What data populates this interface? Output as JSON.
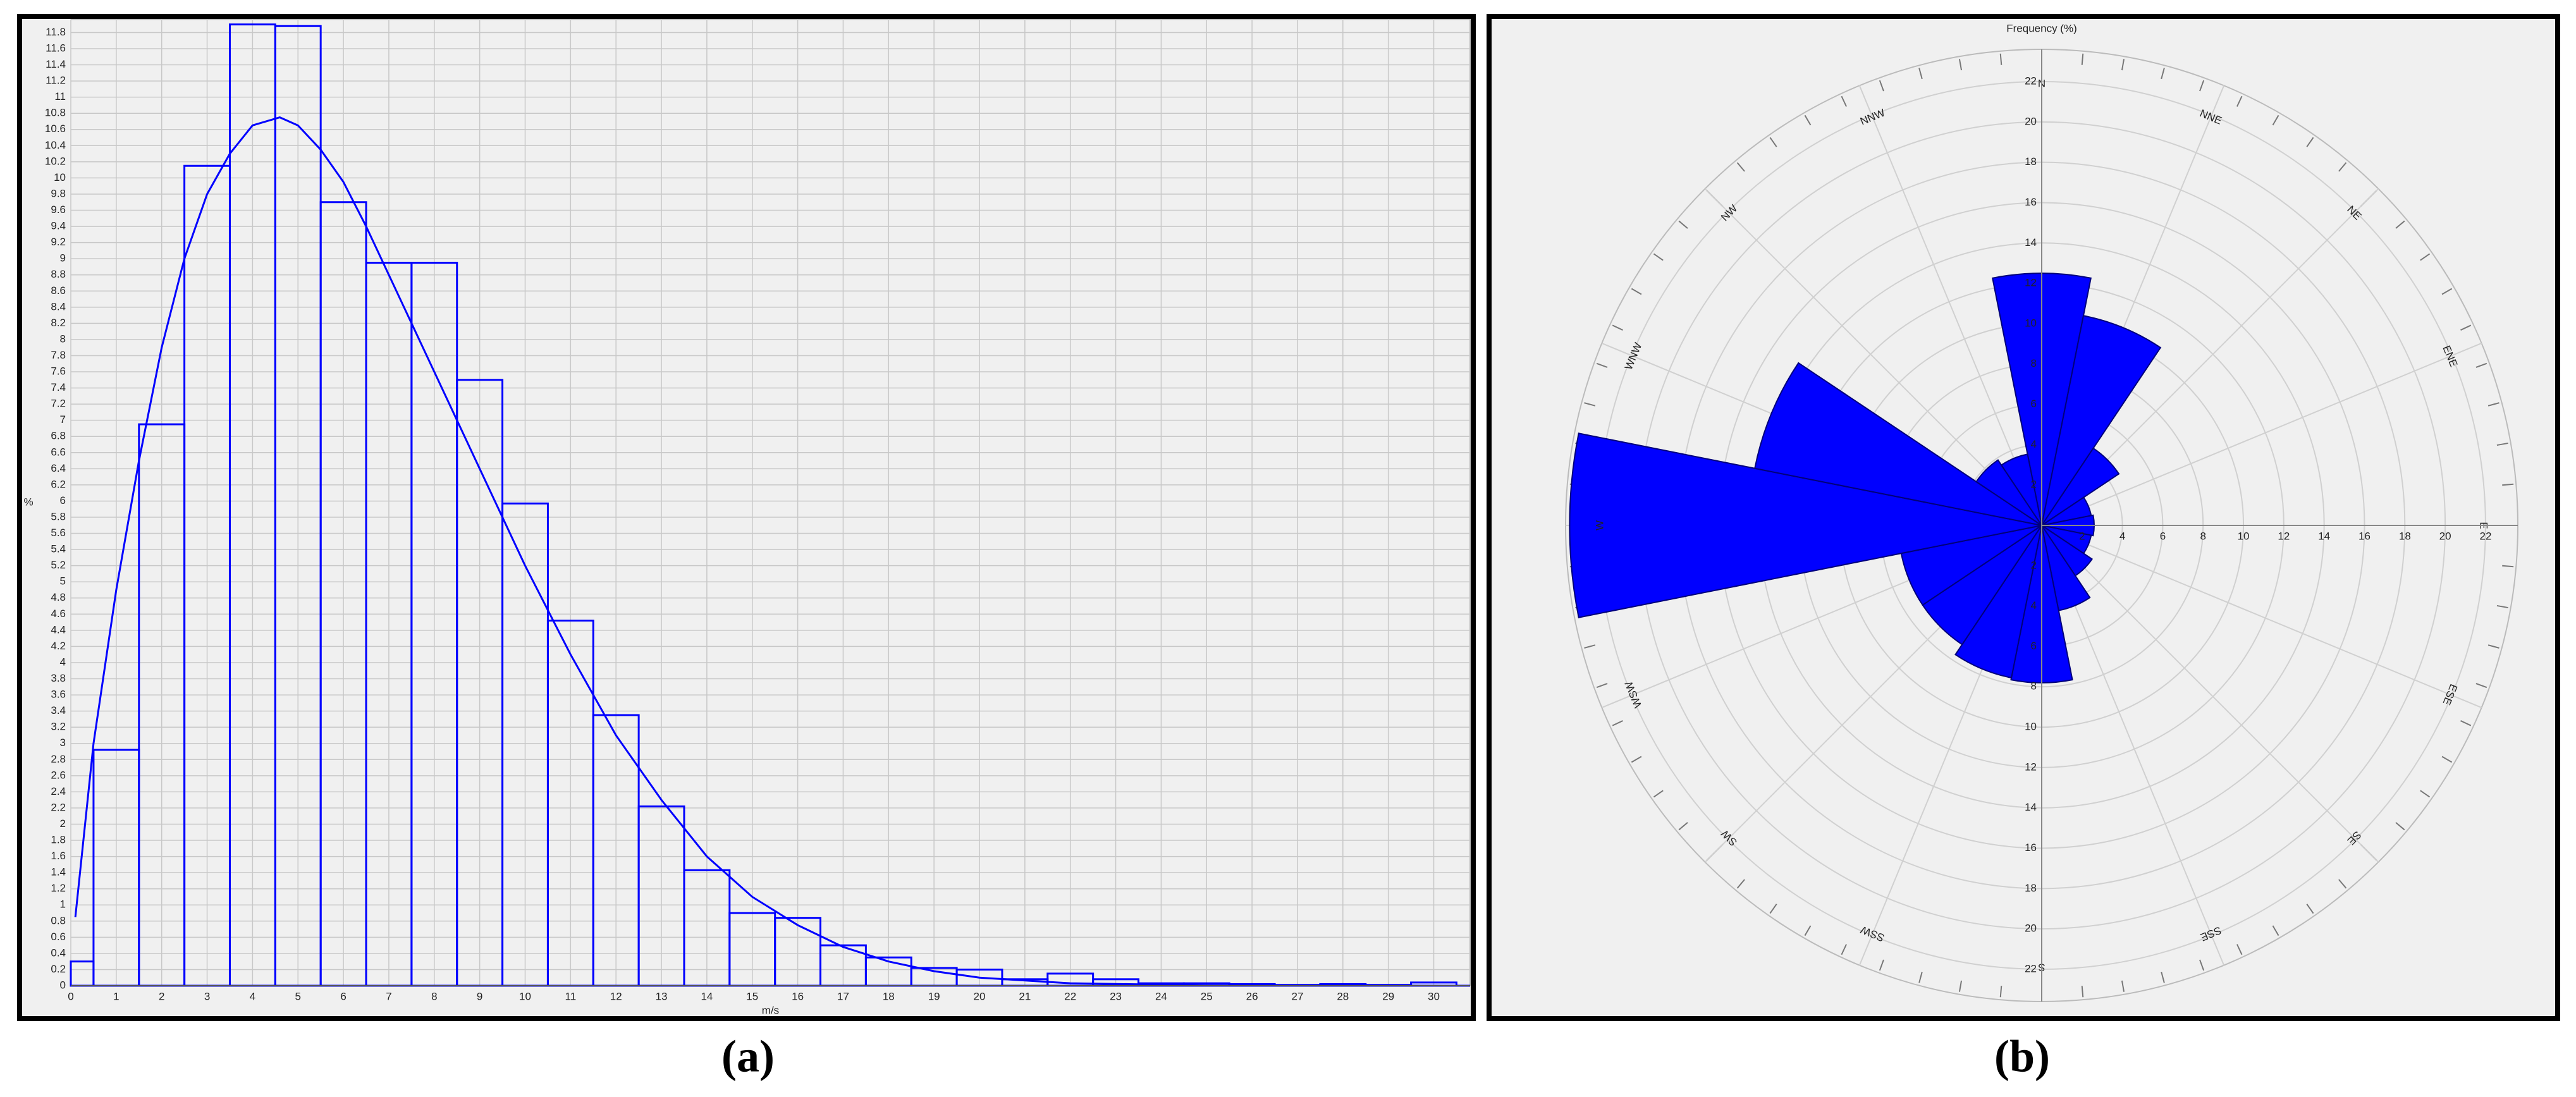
{
  "chart_data": [
    {
      "type": "histogram",
      "caption": "(a)",
      "x_label": "m/s",
      "y_label": "%",
      "color": "#0000ff",
      "grid": true,
      "bins": [
        0,
        0.5,
        1.5,
        2.5,
        3.5,
        4.5,
        5.5,
        6.5,
        7.5,
        8.5,
        9.5,
        10.5,
        11.5,
        12.5,
        13.5,
        14.5,
        15.5,
        16.5,
        17.5,
        18.5,
        19.5,
        20.5,
        21.5,
        22.5,
        23.5,
        24.5,
        25.5,
        26.5,
        27.5,
        28.5,
        29.5,
        30.5
      ],
      "values": [
        0.3,
        2.92,
        6.95,
        10.15,
        11.9,
        11.88,
        9.7,
        8.95,
        8.95,
        7.5,
        5.97,
        4.52,
        3.35,
        2.22,
        1.43,
        0.9,
        0.84,
        0.5,
        0.35,
        0.22,
        0.2,
        0.08,
        0.15,
        0.08,
        0.03,
        0.03,
        0.02,
        0.01,
        0.02,
        0.01,
        0.04
      ],
      "line": {
        "color": "#0000ff",
        "x": [
          0.1,
          0.5,
          1,
          1.5,
          2,
          2.5,
          3,
          3.5,
          4,
          4.6,
          5,
          5.5,
          6,
          6.5,
          7,
          8,
          9,
          10,
          11,
          12,
          13,
          14,
          15,
          16,
          17,
          18,
          19,
          20,
          22,
          25,
          30.8
        ],
        "values": [
          0.85,
          3.0,
          4.9,
          6.5,
          7.9,
          9.0,
          9.8,
          10.3,
          10.65,
          10.75,
          10.65,
          10.35,
          9.95,
          9.4,
          8.8,
          7.6,
          6.4,
          5.2,
          4.1,
          3.1,
          2.3,
          1.6,
          1.1,
          0.75,
          0.48,
          0.3,
          0.18,
          0.1,
          0.03,
          0.005,
          0
        ]
      },
      "xlim": [
        0,
        30.8
      ],
      "ylim": [
        0,
        11.96
      ],
      "xticks": [
        0,
        1,
        2,
        3,
        4,
        5,
        6,
        7,
        8,
        9,
        10,
        11,
        12,
        13,
        14,
        15,
        16,
        17,
        18,
        19,
        20,
        21,
        22,
        23,
        24,
        25,
        26,
        27,
        28,
        29,
        30
      ],
      "yticks": [
        0,
        0.2,
        0.4,
        0.6,
        0.8,
        1,
        1.2,
        1.4,
        1.6,
        1.8,
        2,
        2.2,
        2.4,
        2.6,
        2.8,
        3,
        3.2,
        3.4,
        3.6,
        3.8,
        4,
        4.2,
        4.4,
        4.6,
        4.8,
        5,
        5.2,
        5.4,
        5.6,
        5.8,
        6,
        6.2,
        6.4,
        6.6,
        6.8,
        7,
        7.2,
        7.4,
        7.6,
        7.8,
        8,
        8.2,
        8.4,
        8.6,
        8.8,
        9,
        9.2,
        9.4,
        9.6,
        9.8,
        10,
        10.2,
        10.4,
        10.6,
        10.8,
        11,
        11.2,
        11.4,
        11.6,
        11.8
      ]
    },
    {
      "type": "windrose",
      "caption": "(b)",
      "title": "Frequency (%)",
      "color": "#0000ff",
      "categories": [
        "N",
        "NNE",
        "NE",
        "ENE",
        "E",
        "ESE",
        "SE",
        "SSE",
        "S",
        "SSW",
        "SW",
        "WSW",
        "W",
        "WNW",
        "NW",
        "NNW"
      ],
      "values": [
        12.5,
        10.6,
        4.6,
        2.5,
        2.6,
        2.5,
        3.0,
        4.3,
        7.8,
        7.7,
        7.1,
        7.1,
        23.4,
        14.5,
        3.9,
        3.6
      ],
      "rlim": [
        0,
        23.6
      ],
      "rticks": [
        2,
        4,
        6,
        8,
        10,
        12,
        14,
        16,
        18,
        20,
        22
      ]
    }
  ]
}
